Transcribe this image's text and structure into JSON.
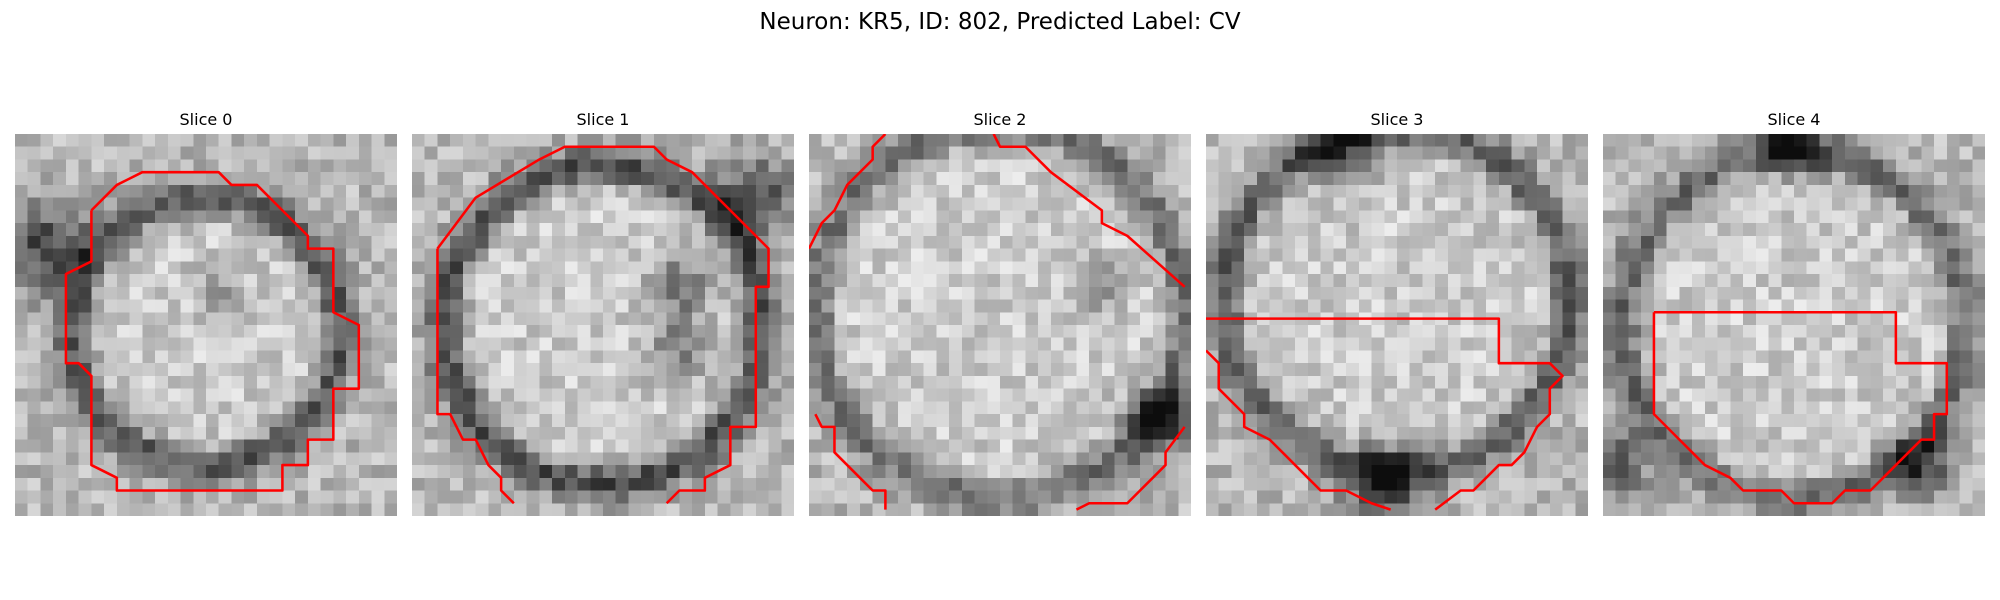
{
  "figure": {
    "title": "Neuron: KR5, ID: 802, Predicted Label: CV",
    "contour_color": "#ff0000",
    "colormap": "gray_r",
    "panels": [
      {
        "title": "Slice 0"
      },
      {
        "title": "Slice 1"
      },
      {
        "title": "Slice 2"
      },
      {
        "title": "Slice 3"
      },
      {
        "title": "Slice 4"
      }
    ]
  }
}
